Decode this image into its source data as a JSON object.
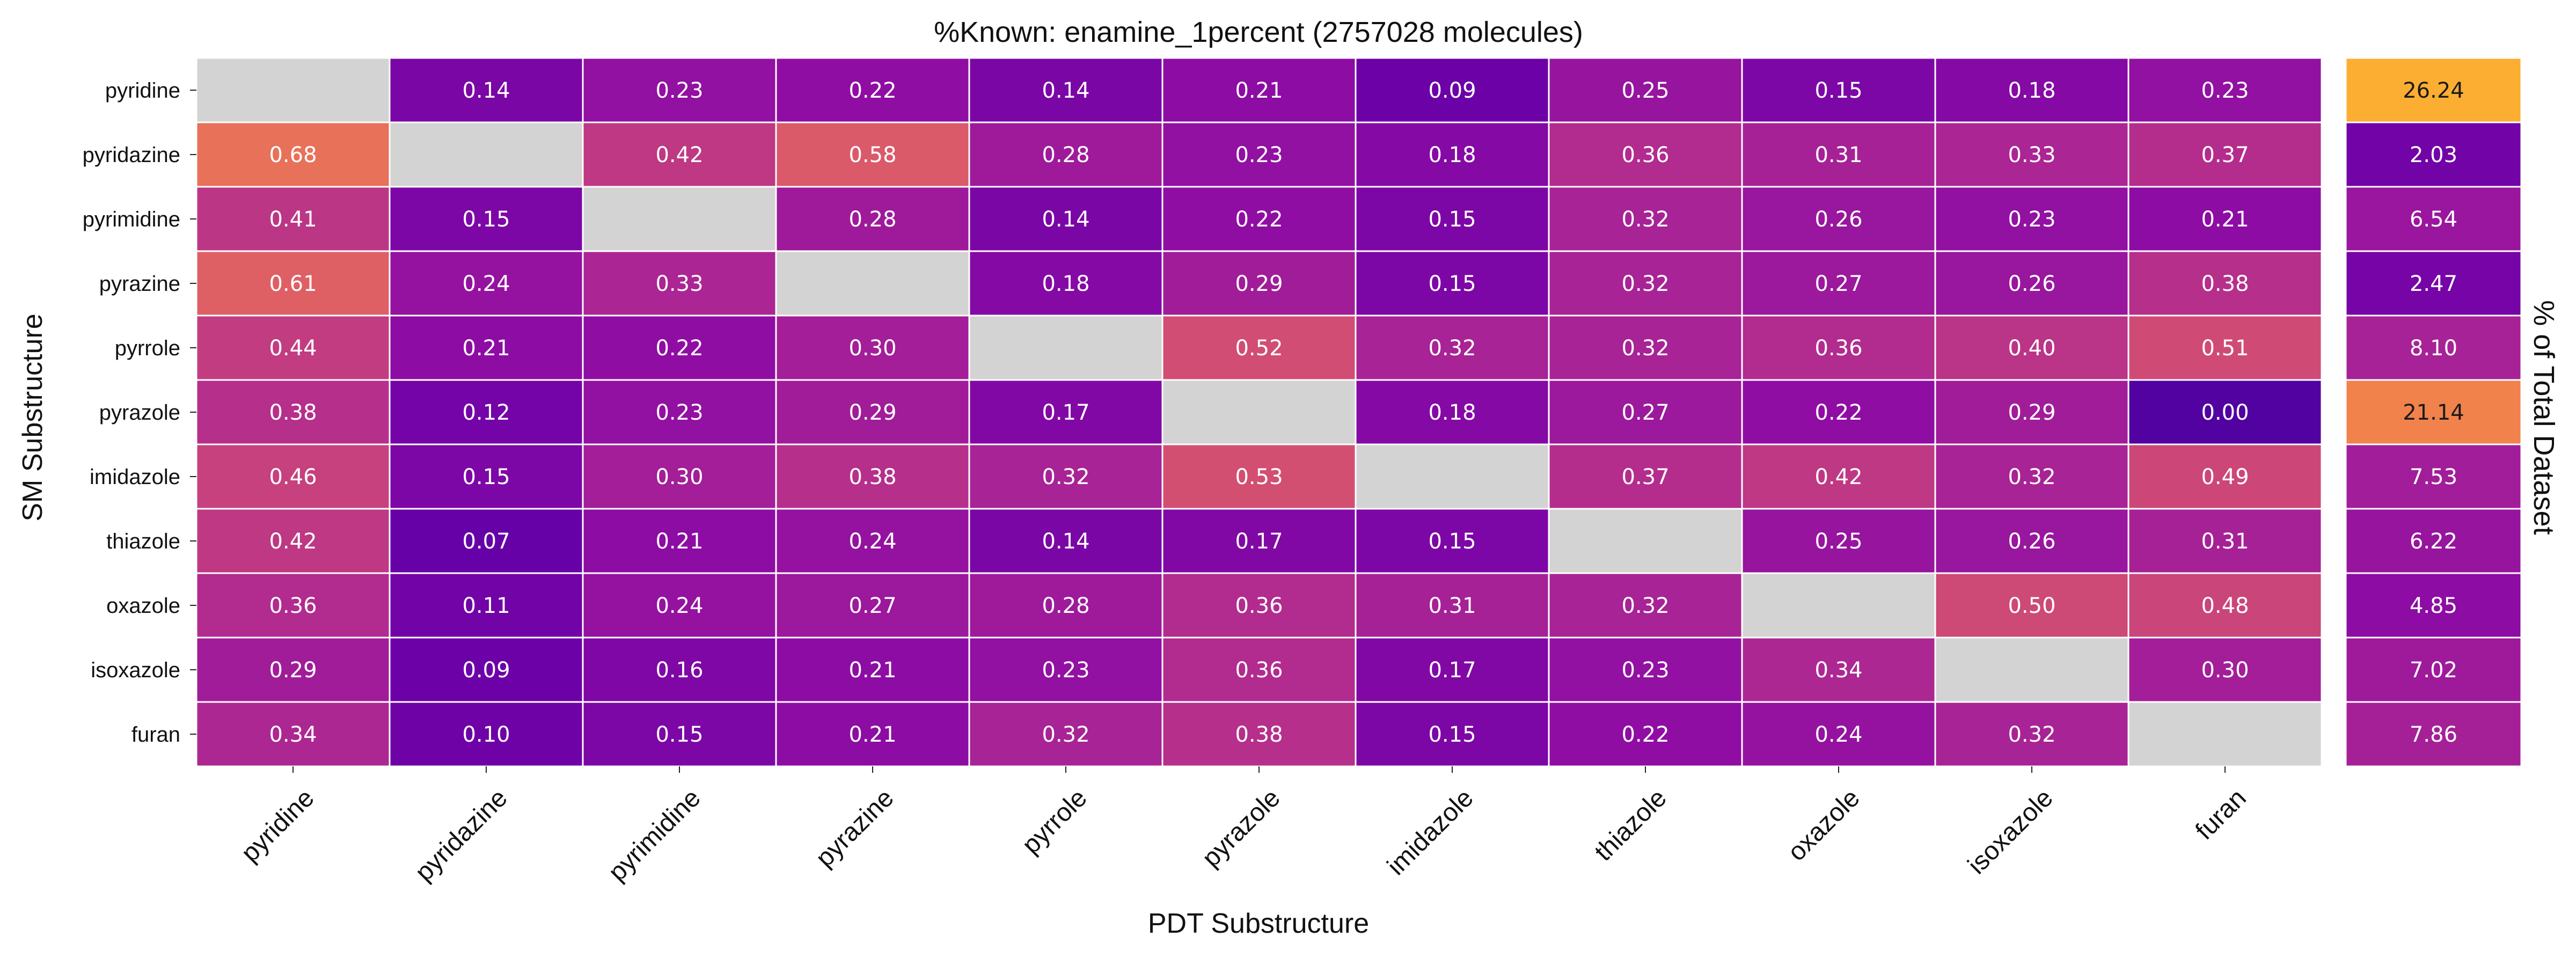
{
  "chart_data": {
    "type": "heatmap",
    "title": "%Known: enamine_1percent (2757028 molecules)",
    "xlabel": "PDT Substructure",
    "ylabel": "SM Substructure",
    "side_label": "% of Total Dataset",
    "x_categories": [
      "pyridine",
      "pyridazine",
      "pyrimidine",
      "pyrazine",
      "pyrrole",
      "pyrazole",
      "imidazole",
      "thiazole",
      "oxazole",
      "isoxazole",
      "furan"
    ],
    "y_categories": [
      "pyridine",
      "pyridazine",
      "pyrimidine",
      "pyrazine",
      "pyrrole",
      "pyrazole",
      "imidazole",
      "thiazole",
      "oxazole",
      "isoxazole",
      "furan"
    ],
    "values": [
      [
        null,
        0.14,
        0.23,
        0.22,
        0.14,
        0.21,
        0.09,
        0.25,
        0.15,
        0.18,
        0.23
      ],
      [
        0.68,
        null,
        0.42,
        0.58,
        0.28,
        0.23,
        0.18,
        0.36,
        0.31,
        0.33,
        0.37
      ],
      [
        0.41,
        0.15,
        null,
        0.28,
        0.14,
        0.22,
        0.15,
        0.32,
        0.26,
        0.23,
        0.21
      ],
      [
        0.61,
        0.24,
        0.33,
        null,
        0.18,
        0.29,
        0.15,
        0.32,
        0.27,
        0.26,
        0.38
      ],
      [
        0.44,
        0.21,
        0.22,
        0.3,
        null,
        0.52,
        0.32,
        0.32,
        0.36,
        0.4,
        0.51
      ],
      [
        0.38,
        0.12,
        0.23,
        0.29,
        0.17,
        null,
        0.18,
        0.27,
        0.22,
        0.29,
        0.0
      ],
      [
        0.46,
        0.15,
        0.3,
        0.38,
        0.32,
        0.53,
        null,
        0.37,
        0.42,
        0.32,
        0.49
      ],
      [
        0.42,
        0.07,
        0.21,
        0.24,
        0.14,
        0.17,
        0.15,
        null,
        0.25,
        0.26,
        0.31
      ],
      [
        0.36,
        0.11,
        0.24,
        0.27,
        0.28,
        0.36,
        0.31,
        0.32,
        null,
        0.5,
        0.48
      ],
      [
        0.29,
        0.09,
        0.16,
        0.21,
        0.23,
        0.36,
        0.17,
        0.23,
        0.34,
        null,
        0.3
      ],
      [
        0.34,
        0.1,
        0.15,
        0.21,
        0.32,
        0.38,
        0.15,
        0.22,
        0.24,
        0.32,
        null
      ]
    ],
    "totals": [
      26.24,
      2.03,
      6.54,
      2.47,
      8.1,
      21.14,
      7.53,
      6.22,
      4.85,
      7.02,
      7.86
    ],
    "colormap": "plasma",
    "missing_color": "#d3d3d3",
    "grid": false,
    "cell_value_format": "2 decimals"
  }
}
